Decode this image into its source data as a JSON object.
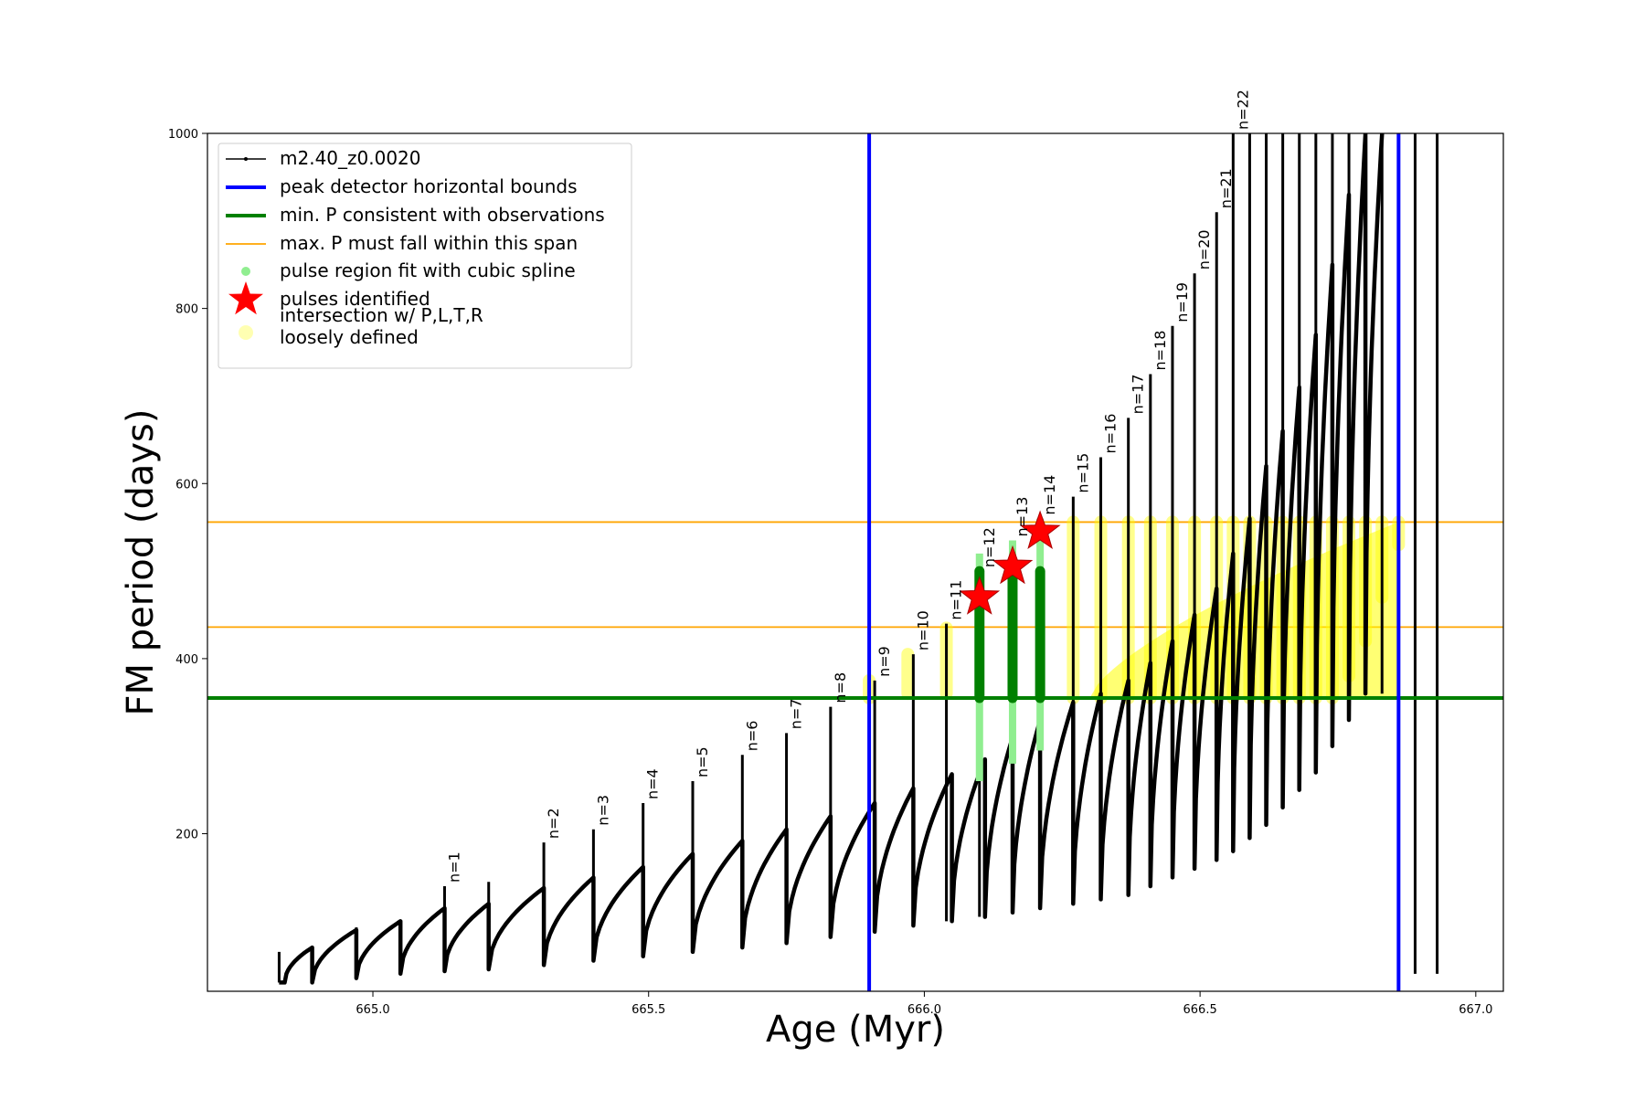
{
  "chart_data": {
    "type": "line",
    "xlabel": "Age (Myr)",
    "ylabel": "FM period (days)",
    "xlim": [
      664.7,
      667.05
    ],
    "ylim": [
      20,
      1000
    ],
    "x_ticks": [
      665.0,
      665.5,
      666.0,
      666.5,
      667.0
    ],
    "x_tick_labels": [
      "665.0",
      "665.5",
      "666.0",
      "666.5",
      "667.0"
    ],
    "y_ticks": [
      200,
      400,
      600,
      800,
      1000
    ],
    "y_tick_labels": [
      "200",
      "400",
      "600",
      "800",
      "1000"
    ],
    "grid": false,
    "legend_position": "top-left",
    "colors": {
      "track": "#000000",
      "bounds": "#0000ff",
      "min_period": "#008000",
      "max_span": "#ffa500",
      "spline_fit": "#90ee90",
      "pulse_star": "#ff0000",
      "loose_intersection": "#ffff00"
    },
    "legend": [
      {
        "label": "m2.40_z0.0020",
        "style": "track"
      },
      {
        "label": "peak detector horizontal bounds",
        "style": "bounds"
      },
      {
        "label": "min. P consistent with observations",
        "style": "min_period"
      },
      {
        "label": "max. P must fall within this span",
        "style": "max_span"
      },
      {
        "label": "pulse region fit with cubic spline",
        "style": "spline_fit"
      },
      {
        "label": "pulses identified",
        "style": "pulse_star"
      },
      {
        "label": "intersection w/ P,L,T,R\nloosely defined",
        "style": "loose_intersection"
      }
    ],
    "peak_detector_bounds_x": [
      665.9,
      666.86
    ],
    "min_period_y": 355,
    "max_period_span_y": [
      436,
      556
    ],
    "track_start": {
      "x": 664.83,
      "y": 30
    },
    "track_cycles": [
      {
        "start": 664.84,
        "end": 664.89,
        "min": 30,
        "peak": 70
      },
      {
        "start": 664.89,
        "end": 664.97,
        "min": 30,
        "peak": 90
      },
      {
        "start": 664.97,
        "end": 665.05,
        "min": 35,
        "peak": 100
      },
      {
        "start": 665.05,
        "end": 665.13,
        "min": 40,
        "peak": 115
      },
      {
        "start": 665.13,
        "end": 665.21,
        "min": 43,
        "peak": 120
      },
      {
        "start": 665.21,
        "end": 665.31,
        "min": 45,
        "peak": 138
      },
      {
        "start": 665.31,
        "end": 665.4,
        "min": 50,
        "peak": 150
      },
      {
        "start": 665.4,
        "end": 665.49,
        "min": 55,
        "peak": 162
      },
      {
        "start": 665.49,
        "end": 665.58,
        "min": 60,
        "peak": 177
      },
      {
        "start": 665.58,
        "end": 665.67,
        "min": 65,
        "peak": 192
      },
      {
        "start": 665.67,
        "end": 665.75,
        "min": 70,
        "peak": 205
      },
      {
        "start": 665.75,
        "end": 665.83,
        "min": 75,
        "peak": 220
      },
      {
        "start": 665.83,
        "end": 665.91,
        "min": 82,
        "peak": 235
      },
      {
        "start": 665.91,
        "end": 665.98,
        "min": 88,
        "peak": 252
      },
      {
        "start": 665.98,
        "end": 666.05,
        "min": 95,
        "peak": 268
      },
      {
        "start": 666.05,
        "end": 666.11,
        "min": 100,
        "peak": 285
      },
      {
        "start": 666.11,
        "end": 666.16,
        "min": 105,
        "peak": 310
      },
      {
        "start": 666.16,
        "end": 666.21,
        "min": 110,
        "peak": 330
      },
      {
        "start": 666.21,
        "end": 666.27,
        "min": 115,
        "peak": 350
      },
      {
        "start": 666.27,
        "end": 666.32,
        "min": 120,
        "peak": 360
      },
      {
        "start": 666.32,
        "end": 666.37,
        "min": 125,
        "peak": 375
      },
      {
        "start": 666.37,
        "end": 666.41,
        "min": 130,
        "peak": 395
      },
      {
        "start": 666.41,
        "end": 666.45,
        "min": 140,
        "peak": 420
      },
      {
        "start": 666.45,
        "end": 666.49,
        "min": 150,
        "peak": 450
      },
      {
        "start": 666.49,
        "end": 666.53,
        "min": 160,
        "peak": 480
      },
      {
        "start": 666.53,
        "end": 666.56,
        "min": 170,
        "peak": 520
      },
      {
        "start": 666.56,
        "end": 666.59,
        "min": 180,
        "peak": 560
      },
      {
        "start": 666.59,
        "end": 666.62,
        "min": 195,
        "peak": 620
      },
      {
        "start": 666.62,
        "end": 666.65,
        "min": 210,
        "peak": 660
      },
      {
        "start": 666.65,
        "end": 666.68,
        "min": 230,
        "peak": 710
      },
      {
        "start": 666.68,
        "end": 666.71,
        "min": 250,
        "peak": 770
      },
      {
        "start": 666.71,
        "end": 666.74,
        "min": 270,
        "peak": 850
      },
      {
        "start": 666.74,
        "end": 666.77,
        "min": 300,
        "peak": 930
      },
      {
        "start": 666.77,
        "end": 666.8,
        "min": 330,
        "peak": 1000
      },
      {
        "start": 666.8,
        "end": 666.83,
        "min": 360,
        "peak": 1000
      }
    ],
    "pulse_spikes": [
      {
        "label": "n=1",
        "x": 665.13,
        "y": 140
      },
      {
        "label": "n=2",
        "x": 665.31,
        "y": 190
      },
      {
        "label": "n=3",
        "x": 665.4,
        "y": 205
      },
      {
        "label": "n=4",
        "x": 665.49,
        "y": 235
      },
      {
        "label": "n=5",
        "x": 665.58,
        "y": 260
      },
      {
        "label": "n=6",
        "x": 665.67,
        "y": 290
      },
      {
        "label": "n=7",
        "x": 665.75,
        "y": 315
      },
      {
        "label": "n=8",
        "x": 665.83,
        "y": 345
      },
      {
        "label": "n=9",
        "x": 665.91,
        "y": 375
      },
      {
        "label": "n=10",
        "x": 665.98,
        "y": 405
      },
      {
        "label": "n=11",
        "x": 666.04,
        "y": 440
      },
      {
        "label": "n=12",
        "x": 666.1,
        "y": 500
      },
      {
        "label": "n=13",
        "x": 666.16,
        "y": 535
      },
      {
        "label": "n=14",
        "x": 666.21,
        "y": 560
      },
      {
        "label": "n=15",
        "x": 666.27,
        "y": 585
      },
      {
        "label": "n=16",
        "x": 666.32,
        "y": 630
      },
      {
        "label": "n=17",
        "x": 666.37,
        "y": 675
      },
      {
        "label": "n=18",
        "x": 666.41,
        "y": 725
      },
      {
        "label": "n=19",
        "x": 666.45,
        "y": 780
      },
      {
        "label": "n=20",
        "x": 666.49,
        "y": 840
      },
      {
        "label": "n=21",
        "x": 666.53,
        "y": 910
      },
      {
        "label": "n=22",
        "x": 666.56,
        "y": 1000
      }
    ],
    "extra_spikes": [
      {
        "x": 664.83,
        "y": 65
      },
      {
        "x": 664.89,
        "y": 70
      },
      {
        "x": 664.97,
        "y": 93
      },
      {
        "x": 665.05,
        "y": 100
      },
      {
        "x": 665.21,
        "y": 145
      },
      {
        "x": 666.59,
        "y": 1000
      },
      {
        "x": 666.62,
        "y": 1000
      },
      {
        "x": 666.65,
        "y": 1000
      },
      {
        "x": 666.68,
        "y": 1000
      },
      {
        "x": 666.71,
        "y": 1000
      },
      {
        "x": 666.74,
        "y": 1000
      },
      {
        "x": 666.77,
        "y": 1000
      },
      {
        "x": 666.8,
        "y": 1000
      },
      {
        "x": 666.83,
        "y": 1000
      },
      {
        "x": 666.86,
        "y": 1000
      },
      {
        "x": 666.89,
        "y": 1000
      },
      {
        "x": 666.93,
        "y": 1000
      }
    ],
    "spline_fit_regions": [
      {
        "x": 666.1,
        "y_low": 260,
        "y_high": 520,
        "green_low": 355,
        "green_high": 500
      },
      {
        "x": 666.16,
        "y_low": 280,
        "y_high": 535,
        "green_low": 355,
        "green_high": 500
      },
      {
        "x": 666.21,
        "y_low": 295,
        "y_high": 560,
        "green_low": 355,
        "green_high": 500
      }
    ],
    "pulses_identified": [
      {
        "x": 666.1,
        "y": 470
      },
      {
        "x": 666.16,
        "y": 505
      },
      {
        "x": 666.21,
        "y": 545
      }
    ],
    "loose_intersections": [
      {
        "x": 665.9,
        "y_low": 355,
        "y_high": 375
      },
      {
        "x": 665.97,
        "y_low": 360,
        "y_high": 405
      },
      {
        "x": 666.04,
        "y_low": 360,
        "y_high": 435
      },
      {
        "x": 666.27,
        "y_low": 355,
        "y_high": 556
      },
      {
        "x": 666.32,
        "y_low": 355,
        "y_high": 556
      },
      {
        "x": 666.37,
        "y_low": 355,
        "y_high": 556
      },
      {
        "x": 666.41,
        "y_low": 355,
        "y_high": 556
      },
      {
        "x": 666.45,
        "y_low": 355,
        "y_high": 556
      },
      {
        "x": 666.49,
        "y_low": 355,
        "y_high": 556
      },
      {
        "x": 666.53,
        "y_low": 355,
        "y_high": 556
      },
      {
        "x": 666.56,
        "y_low": 355,
        "y_high": 556
      },
      {
        "x": 666.59,
        "y_low": 355,
        "y_high": 556
      },
      {
        "x": 666.62,
        "y_low": 355,
        "y_high": 556
      },
      {
        "x": 666.65,
        "y_low": 355,
        "y_high": 556
      },
      {
        "x": 666.68,
        "y_low": 355,
        "y_high": 556
      },
      {
        "x": 666.71,
        "y_low": 355,
        "y_high": 556
      },
      {
        "x": 666.74,
        "y_low": 355,
        "y_high": 556
      },
      {
        "x": 666.77,
        "y_low": 380,
        "y_high": 556
      },
      {
        "x": 666.8,
        "y_low": 420,
        "y_high": 556
      },
      {
        "x": 666.83,
        "y_low": 470,
        "y_high": 556
      },
      {
        "x": 666.86,
        "y_low": 530,
        "y_high": 556
      }
    ],
    "loose_band": {
      "x_start": 666.3,
      "x_end": 666.86,
      "y_top_start": 355,
      "y_top_end": 556
    }
  }
}
